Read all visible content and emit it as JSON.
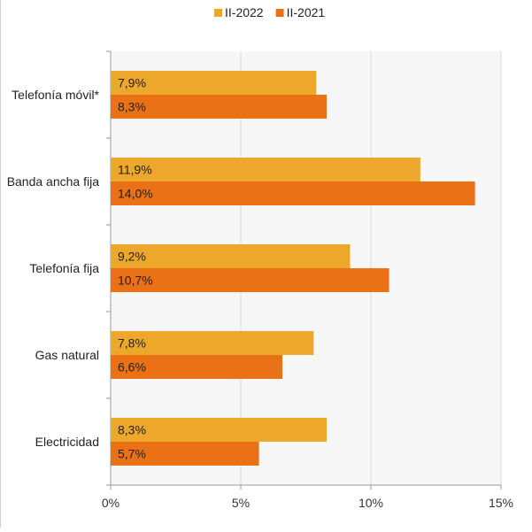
{
  "chart_data": {
    "type": "bar",
    "orientation": "horizontal",
    "categories": [
      "Telefonía móvil*",
      "Banda ancha fija",
      "Telefonía fija",
      "Gas natural",
      "Electricidad"
    ],
    "series": [
      {
        "name": "II-2022",
        "values": [
          7.9,
          11.9,
          9.2,
          7.8,
          8.3
        ],
        "labels": [
          "7,9%",
          "11,9%",
          "9,2%",
          "7,8%",
          "8,3%"
        ],
        "color": "#EDA72B"
      },
      {
        "name": "II-2021",
        "values": [
          8.3,
          14.0,
          10.7,
          6.6,
          5.7
        ],
        "labels": [
          "8,3%",
          "14,0%",
          "10,7%",
          "6,6%",
          "5,7%"
        ],
        "color": "#EA7115"
      }
    ],
    "xlim": [
      0,
      15
    ],
    "xticks": [
      0,
      5,
      10,
      15
    ],
    "xtick_labels": [
      "0%",
      "5%",
      "10%",
      "15%"
    ],
    "grid": "vertical",
    "legend_position": "top-center",
    "title": "",
    "xlabel": "",
    "ylabel": ""
  }
}
